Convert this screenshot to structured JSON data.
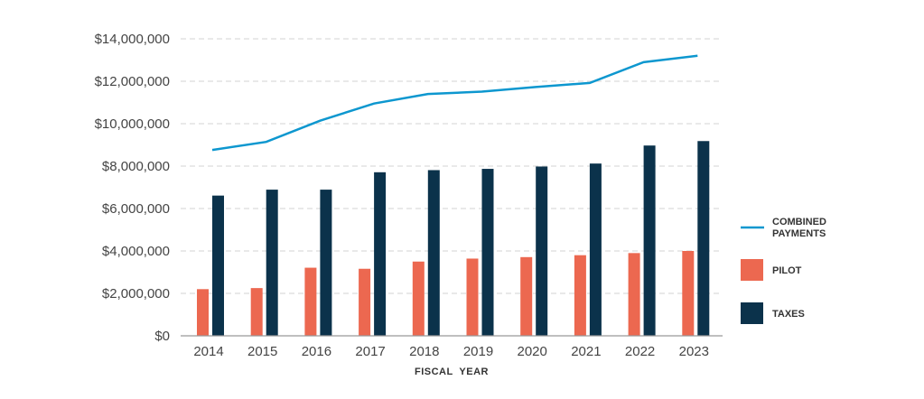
{
  "chart_data": {
    "type": "bar",
    "title": "",
    "xlabel": "FISCAL  YEAR",
    "ylabel": "",
    "ylim": [
      0,
      14000000
    ],
    "yticks": [
      0,
      2000000,
      4000000,
      6000000,
      8000000,
      10000000,
      12000000,
      14000000
    ],
    "ytick_labels": [
      "$0",
      "$2,000,000",
      "$4,000,000",
      "$6,000,000",
      "$8,000,000",
      "$10,000,000",
      "$12,000,000",
      "$14,000,000"
    ],
    "grid": "horizontal dashed",
    "legend_position": "right",
    "categories": [
      "2014",
      "2015",
      "2016",
      "2017",
      "2018",
      "2019",
      "2020",
      "2021",
      "2022",
      "2023"
    ],
    "series": [
      {
        "name": "COMBINED PAYMENTS",
        "type": "line",
        "color": "#0d97cf",
        "values": [
          8760000,
          9140000,
          10140000,
          10950000,
          11400000,
          11510000,
          11730000,
          11920000,
          12900000,
          13200000
        ]
      },
      {
        "name": "PILOT",
        "type": "bar",
        "color": "#ec6850",
        "values": [
          2200000,
          2250000,
          3210000,
          3160000,
          3500000,
          3640000,
          3710000,
          3800000,
          3900000,
          4000000
        ]
      },
      {
        "name": "TAXES",
        "type": "bar",
        "color": "#0b324b",
        "values": [
          6610000,
          6890000,
          6890000,
          7710000,
          7810000,
          7870000,
          7980000,
          8120000,
          8970000,
          9180000
        ]
      }
    ],
    "legend": [
      "COMBINED",
      "PAYMENTS",
      "PILOT",
      "TAXES"
    ]
  }
}
